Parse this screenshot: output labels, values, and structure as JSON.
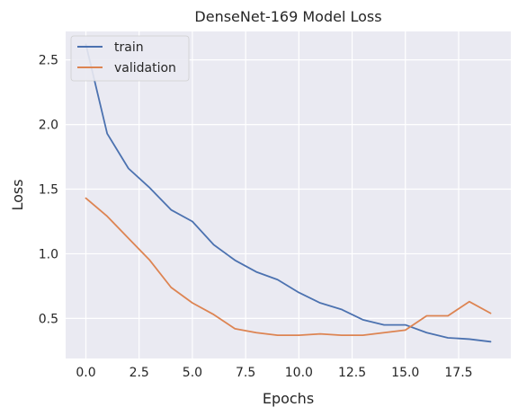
{
  "chart_data": {
    "type": "line",
    "title": "DenseNet-169 Model Loss",
    "xlabel": "Epochs",
    "ylabel": "Loss",
    "xlim": [
      -0.95,
      19.95
    ],
    "ylim": [
      0.19,
      2.72
    ],
    "x_ticks": [
      0.0,
      2.5,
      5.0,
      7.5,
      10.0,
      12.5,
      15.0,
      17.5
    ],
    "x_tick_labels": [
      "0.0",
      "2.5",
      "5.0",
      "7.5",
      "10.0",
      "12.5",
      "15.0",
      "17.5"
    ],
    "y_ticks": [
      0.5,
      1.0,
      1.5,
      2.0,
      2.5
    ],
    "y_tick_labels": [
      "0.5",
      "1.0",
      "1.5",
      "2.0",
      "2.5"
    ],
    "grid": true,
    "legend_position": "top-left",
    "x": [
      0,
      1,
      2,
      3,
      4,
      5,
      6,
      7,
      8,
      9,
      10,
      11,
      12,
      13,
      14,
      15,
      16,
      17,
      18,
      19
    ],
    "series": [
      {
        "name": "train",
        "color": "#4c72b0",
        "values": [
          2.62,
          1.93,
          1.66,
          1.51,
          1.34,
          1.25,
          1.07,
          0.95,
          0.86,
          0.8,
          0.7,
          0.62,
          0.57,
          0.49,
          0.45,
          0.45,
          0.39,
          0.35,
          0.34,
          0.32
        ]
      },
      {
        "name": "validation",
        "color": "#dd8452",
        "values": [
          1.43,
          1.29,
          1.12,
          0.95,
          0.74,
          0.62,
          0.53,
          0.42,
          0.39,
          0.37,
          0.37,
          0.38,
          0.37,
          0.37,
          0.39,
          0.41,
          0.52,
          0.52,
          0.63,
          0.54
        ]
      }
    ]
  }
}
